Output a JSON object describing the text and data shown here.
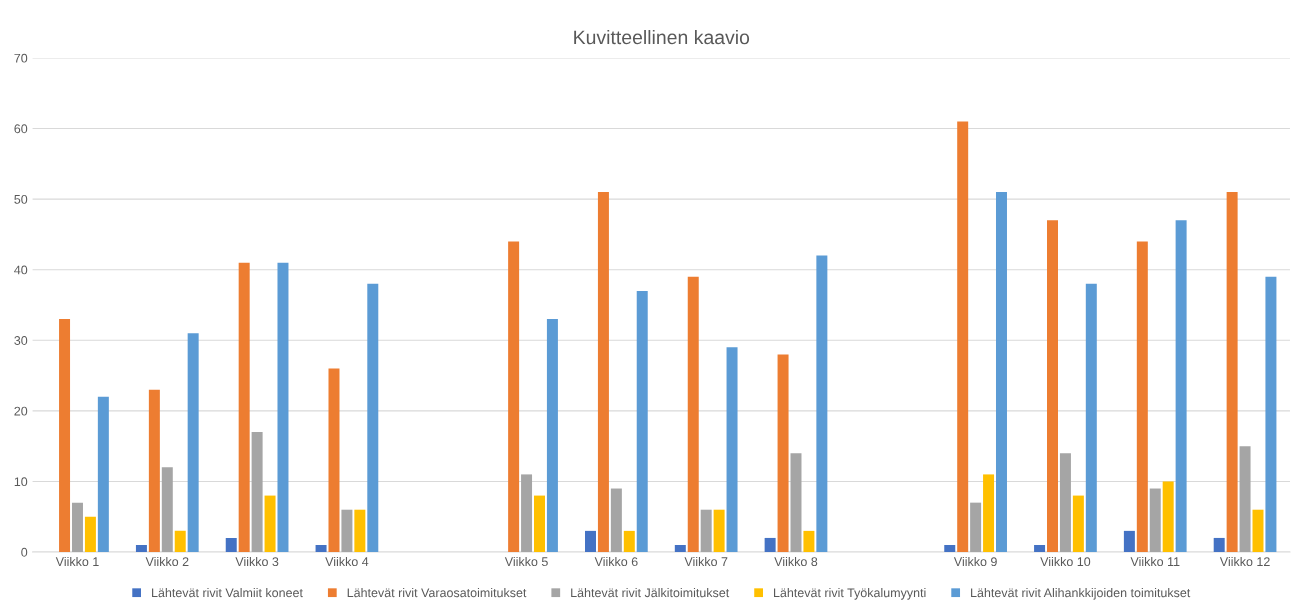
{
  "chart_data": {
    "type": "bar",
    "title": "Kuvitteellinen kaavio",
    "categories": [
      "Viikko 1",
      "Viikko 2",
      "Viikko 3",
      "Viikko 4",
      null,
      "Viikko 5",
      "Viikko 6",
      "Viikko 7",
      "Viikko 8",
      null,
      "Viikko 9",
      "Viikko 10",
      "Viikko 11",
      "Viikko 12"
    ],
    "series": [
      {
        "name": "Lähtevät rivit Valmiit koneet",
        "color": "#4472c4",
        "values": [
          0,
          1,
          2,
          1,
          null,
          0,
          3,
          1,
          2,
          null,
          1,
          1,
          3,
          2
        ]
      },
      {
        "name": "Lähtevät rivit Varaosatoimitukset",
        "color": "#ed7d31",
        "values": [
          33,
          23,
          41,
          26,
          null,
          44,
          51,
          39,
          28,
          null,
          61,
          47,
          44,
          51
        ]
      },
      {
        "name": "Lähtevät rivit Jälkitoimitukset",
        "color": "#a5a5a5",
        "values": [
          7,
          12,
          17,
          6,
          null,
          11,
          9,
          6,
          14,
          null,
          7,
          14,
          9,
          15
        ]
      },
      {
        "name": "Lähtevät rivit Työkalumyynti",
        "color": "#ffc000",
        "values": [
          5,
          3,
          8,
          6,
          null,
          8,
          3,
          6,
          3,
          null,
          11,
          8,
          10,
          6
        ]
      },
      {
        "name": "Lähtevät rivit Alihankkijoiden toimitukset",
        "color": "#5b9bd5",
        "values": [
          22,
          31,
          41,
          38,
          null,
          33,
          37,
          29,
          42,
          null,
          51,
          38,
          47,
          39
        ]
      }
    ],
    "ylim": [
      0,
      70
    ],
    "yticks": [
      0,
      10,
      20,
      30,
      40,
      50,
      60,
      70
    ],
    "grid": "y",
    "legend": "bottom"
  }
}
